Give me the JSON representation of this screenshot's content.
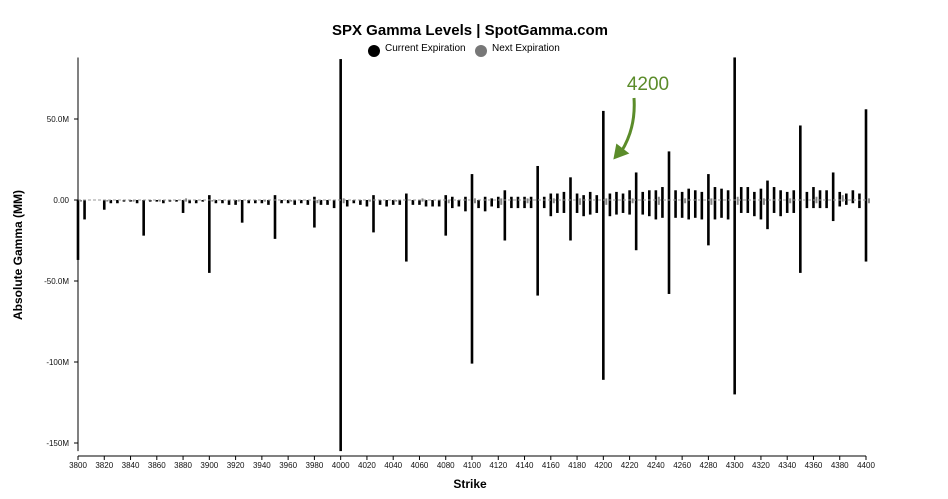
{
  "chart_data": {
    "type": "bar",
    "title": "SPX Gamma Levels | SpotGamma.com",
    "xlabel": "Strike",
    "ylabel": "Absolute Gamma (MM)",
    "ylim": [
      -155,
      88
    ],
    "yticks": [
      50,
      0,
      -50,
      -100,
      -150
    ],
    "ytick_labels": [
      "50.0M",
      "0.00",
      "-50.0M",
      "-100M",
      "-150M"
    ],
    "xticks": [
      3800,
      3820,
      3840,
      3860,
      3880,
      3900,
      3920,
      3940,
      3960,
      3980,
      4000,
      4020,
      4040,
      4060,
      4080,
      4100,
      4120,
      4140,
      4160,
      4180,
      4200,
      4220,
      4240,
      4260,
      4280,
      4300,
      4320,
      4340,
      4360,
      4380,
      4400
    ],
    "grid": false,
    "legend": [
      {
        "label": "Current Expiration",
        "color": "#000000"
      },
      {
        "label": "Next Expiration",
        "color": "#777777"
      }
    ],
    "colors": {
      "current": "#000000",
      "next": "#888888",
      "annotation": "#5b8c2a"
    },
    "annotation": {
      "text": "4200",
      "x": 4200,
      "y": 25
    },
    "series": [
      {
        "name": "Current Expiration",
        "x": [
          3800,
          3805,
          3810,
          3815,
          3820,
          3825,
          3830,
          3835,
          3840,
          3845,
          3850,
          3855,
          3860,
          3865,
          3870,
          3875,
          3880,
          3885,
          3890,
          3895,
          3900,
          3905,
          3910,
          3915,
          3920,
          3925,
          3930,
          3935,
          3940,
          3945,
          3950,
          3955,
          3960,
          3965,
          3970,
          3975,
          3980,
          3985,
          3990,
          3995,
          4000,
          4005,
          4010,
          4015,
          4020,
          4025,
          4030,
          4035,
          4040,
          4045,
          4050,
          4055,
          4060,
          4065,
          4070,
          4075,
          4080,
          4085,
          4090,
          4095,
          4100,
          4105,
          4110,
          4115,
          4120,
          4125,
          4130,
          4135,
          4140,
          4145,
          4150,
          4155,
          4160,
          4165,
          4170,
          4175,
          4180,
          4185,
          4190,
          4195,
          4200,
          4205,
          4210,
          4215,
          4220,
          4225,
          4230,
          4235,
          4240,
          4245,
          4250,
          4255,
          4260,
          4265,
          4270,
          4275,
          4280,
          4285,
          4290,
          4295,
          4300,
          4305,
          4310,
          4315,
          4320,
          4325,
          4330,
          4335,
          4340,
          4345,
          4350,
          4355,
          4360,
          4365,
          4370,
          4375,
          4380,
          4385,
          4390,
          4395,
          4400
        ],
        "pos": [
          0,
          0,
          0,
          0,
          0,
          0,
          0,
          0,
          0,
          0,
          0,
          0,
          0,
          0,
          0,
          0,
          0,
          0,
          0,
          0,
          3,
          0,
          0,
          0,
          0,
          0,
          0,
          0,
          0,
          0,
          3,
          0,
          0,
          0,
          0,
          0,
          2,
          0,
          0,
          0,
          87,
          0,
          0,
          0,
          0,
          3,
          0,
          0,
          0,
          0,
          4,
          0,
          0,
          0,
          0,
          0,
          3,
          2,
          0,
          2,
          16,
          0,
          2,
          1,
          2,
          6,
          2,
          2,
          2,
          2,
          21,
          2,
          4,
          4,
          5,
          14,
          4,
          3,
          5,
          3,
          55,
          4,
          5,
          4,
          6,
          17,
          5,
          6,
          6,
          8,
          30,
          6,
          5,
          7,
          6,
          5,
          16,
          8,
          7,
          6,
          88,
          8,
          8,
          5,
          7,
          12,
          8,
          6,
          5,
          6,
          46,
          5,
          8,
          6,
          6,
          17,
          5,
          4,
          6,
          4,
          56
        ],
        "neg": [
          -37,
          -12,
          0,
          0,
          -6,
          -2,
          -2,
          -1,
          -1,
          -2,
          -22,
          -1,
          -1,
          -2,
          -1,
          -1,
          -8,
          -2,
          -2,
          -1,
          -45,
          -2,
          -2,
          -3,
          -3,
          -14,
          -2,
          -2,
          -2,
          -3,
          -24,
          -2,
          -2,
          -3,
          -2,
          -3,
          -17,
          -3,
          -3,
          -5,
          -155,
          -4,
          -2,
          -3,
          -4,
          -20,
          -3,
          -4,
          -3,
          -3,
          -38,
          -3,
          -3,
          -4,
          -4,
          -4,
          -22,
          -5,
          -4,
          -7,
          -101,
          -5,
          -7,
          -4,
          -5,
          -25,
          -5,
          -5,
          -5,
          -5,
          -59,
          -5,
          -10,
          -8,
          -8,
          -25,
          -8,
          -10,
          -9,
          -8,
          -111,
          -10,
          -9,
          -8,
          -9,
          -31,
          -9,
          -10,
          -12,
          -11,
          -58,
          -11,
          -11,
          -12,
          -11,
          -12,
          -28,
          -12,
          -11,
          -12,
          -120,
          -8,
          -8,
          -10,
          -12,
          -18,
          -8,
          -10,
          -8,
          -8,
          -45,
          -5,
          -5,
          -5,
          -5,
          -13,
          -4,
          -3,
          -2,
          -5,
          -38
        ]
      },
      {
        "name": "Next Expiration",
        "x": [
          3800,
          3820,
          3840,
          3860,
          3880,
          3900,
          3920,
          3940,
          3960,
          3980,
          4000,
          4020,
          4040,
          4060,
          4080,
          4100,
          4120,
          4140,
          4160,
          4180,
          4200,
          4220,
          4240,
          4260,
          4280,
          4300,
          4320,
          4340,
          4360,
          4380,
          4400
        ],
        "pos": [
          0,
          0,
          0,
          0,
          1,
          0,
          0,
          0,
          0,
          0,
          1,
          0,
          0,
          1,
          0,
          1,
          1,
          1,
          1,
          1,
          1,
          1,
          2,
          1,
          1,
          2,
          1,
          1,
          2,
          3,
          1
        ],
        "neg": [
          -1,
          -1,
          -1,
          -1,
          -1,
          -1,
          -1,
          -1,
          -1,
          -2,
          -2,
          -1,
          -1,
          -1,
          -2,
          -2,
          -3,
          -2,
          -2,
          -3,
          -3,
          -2,
          -3,
          -2,
          -3,
          -3,
          -3,
          -2,
          -2,
          -1,
          -2
        ]
      }
    ]
  }
}
